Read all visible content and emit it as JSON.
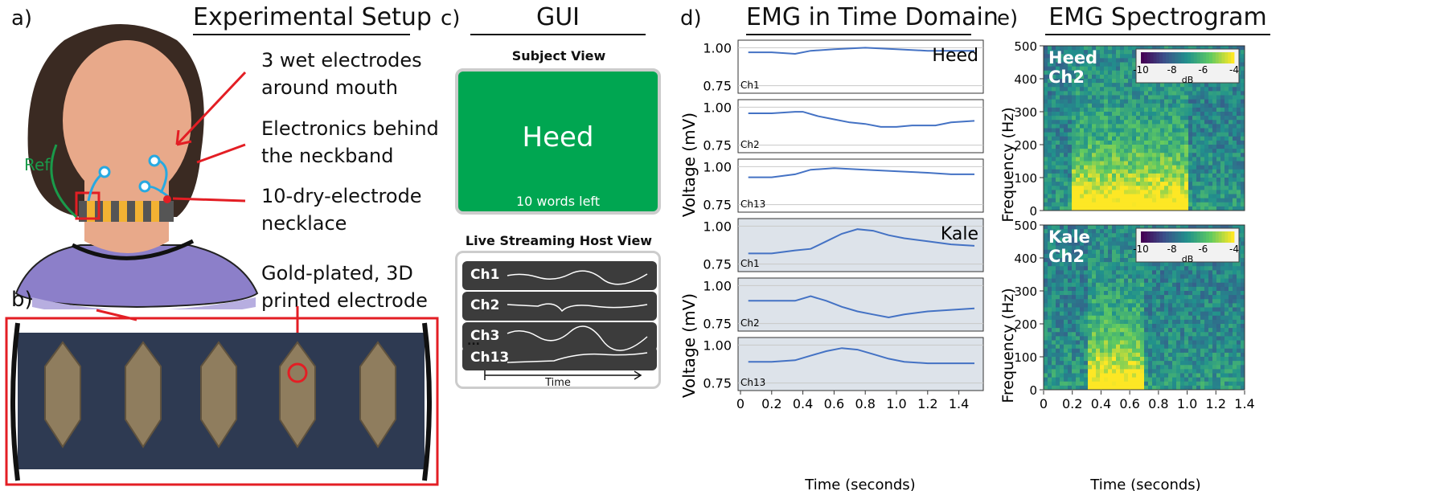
{
  "panels": {
    "a": "a)",
    "b": "b)",
    "c": "c)",
    "d": "d)",
    "e": "e)"
  },
  "setup": {
    "title": "Experimental Setup",
    "callouts": [
      "3 wet electrodes\naround mouth",
      "Electronics behind\nthe neckband",
      "10-dry-electrode\nnecklace",
      "Gold-plated, 3D\nprinted electrode"
    ],
    "ref_label": "Ref"
  },
  "gui": {
    "title": "GUI",
    "subject_view_title": "Subject View",
    "subject_word": "Heed",
    "words_left": "10 words left",
    "host_view_title": "Live Streaming Host View",
    "channels": [
      "Ch1",
      "Ch2",
      "Ch3",
      "Ch13"
    ],
    "ellipsis": "...",
    "time_label": "Time",
    "colors": {
      "subject_bg": "#00a651",
      "row_bg": "#3c3c3c"
    }
  },
  "emg_time": {
    "title": "EMG in Time Domain",
    "chart_data": [
      {
        "type": "line",
        "word": "Heed",
        "xlabel": "Time (seconds)",
        "ylabel": "Voltage (mV)",
        "xlim": [
          0,
          1.5
        ],
        "ylim": [
          0.7,
          1.05
        ],
        "yticks": [
          "1.00",
          "0.75"
        ],
        "channels": [
          {
            "name": "Ch1",
            "x": [
              0.05,
              0.2,
              0.35,
              0.45,
              0.6,
              0.8,
              1.0,
              1.2,
              1.35,
              1.5
            ],
            "y": [
              0.97,
              0.97,
              0.96,
              0.98,
              0.99,
              1.0,
              0.99,
              0.98,
              0.98,
              0.98
            ]
          },
          {
            "name": "Ch2",
            "x": [
              0.05,
              0.2,
              0.35,
              0.4,
              0.5,
              0.6,
              0.7,
              0.8,
              0.9,
              1.0,
              1.1,
              1.25,
              1.35,
              1.5
            ],
            "y": [
              0.96,
              0.96,
              0.97,
              0.97,
              0.94,
              0.92,
              0.9,
              0.89,
              0.87,
              0.87,
              0.88,
              0.88,
              0.9,
              0.91
            ]
          },
          {
            "name": "Ch13",
            "x": [
              0.05,
              0.2,
              0.35,
              0.45,
              0.6,
              0.8,
              1.0,
              1.2,
              1.35,
              1.5
            ],
            "y": [
              0.93,
              0.93,
              0.95,
              0.98,
              0.99,
              0.98,
              0.97,
              0.96,
              0.95,
              0.95
            ]
          }
        ]
      },
      {
        "type": "line",
        "word": "Kale",
        "xlabel": "Time (seconds)",
        "ylabel": "Voltage (mV)",
        "xlim": [
          0,
          1.5
        ],
        "ylim": [
          0.7,
          1.05
        ],
        "yticks": [
          "1.00",
          "0.75"
        ],
        "channels": [
          {
            "name": "Ch1",
            "x": [
              0.05,
              0.2,
              0.35,
              0.45,
              0.55,
              0.65,
              0.75,
              0.85,
              0.95,
              1.05,
              1.2,
              1.35,
              1.5
            ],
            "y": [
              0.82,
              0.82,
              0.84,
              0.85,
              0.9,
              0.95,
              0.98,
              0.97,
              0.94,
              0.92,
              0.9,
              0.88,
              0.87
            ]
          },
          {
            "name": "Ch2",
            "x": [
              0.05,
              0.2,
              0.35,
              0.45,
              0.55,
              0.65,
              0.75,
              0.85,
              0.95,
              1.05,
              1.2,
              1.35,
              1.5
            ],
            "y": [
              0.9,
              0.9,
              0.9,
              0.93,
              0.9,
              0.86,
              0.83,
              0.81,
              0.79,
              0.81,
              0.83,
              0.84,
              0.85
            ]
          },
          {
            "name": "Ch13",
            "x": [
              0.05,
              0.2,
              0.35,
              0.45,
              0.55,
              0.65,
              0.75,
              0.85,
              0.95,
              1.05,
              1.2,
              1.35,
              1.5
            ],
            "y": [
              0.89,
              0.89,
              0.9,
              0.93,
              0.96,
              0.98,
              0.97,
              0.94,
              0.91,
              0.89,
              0.88,
              0.88,
              0.88
            ]
          }
        ]
      }
    ],
    "xticks": [
      "0",
      "0.2",
      "0.4",
      "0.6",
      "0.8",
      "1.0",
      "1.2",
      "1.4"
    ],
    "xlabel": "Time (seconds)",
    "ylabel": "Voltage (mV)"
  },
  "spectrogram": {
    "title": "EMG Spectrogram",
    "chart_data": [
      {
        "type": "heatmap",
        "label_word": "Heed",
        "label_ch": "Ch2",
        "ylabel": "Frequency (Hz)",
        "xlabel": "Time (seconds)",
        "xlim": [
          0,
          1.4
        ],
        "ylim": [
          0,
          500
        ],
        "clim": [
          -10,
          -4
        ],
        "colorbar_ticks": [
          "-10",
          "-8",
          "-6",
          "-4"
        ],
        "colorbar_label": "dB"
      },
      {
        "type": "heatmap",
        "label_word": "Kale",
        "label_ch": "Ch2",
        "ylabel": "Frequency (Hz)",
        "xlabel": "Time (seconds)",
        "xlim": [
          0,
          1.4
        ],
        "ylim": [
          0,
          500
        ],
        "clim": [
          -10,
          -4
        ],
        "colorbar_ticks": [
          "-10",
          "-8",
          "-6",
          "-4"
        ],
        "colorbar_label": "dB"
      }
    ],
    "yticks": [
      "500",
      "400",
      "300",
      "200",
      "100",
      "0"
    ],
    "xticks": [
      "0",
      "0.2",
      "0.4",
      "0.6",
      "0.8",
      "1.0",
      "1.2",
      "1.4"
    ]
  }
}
